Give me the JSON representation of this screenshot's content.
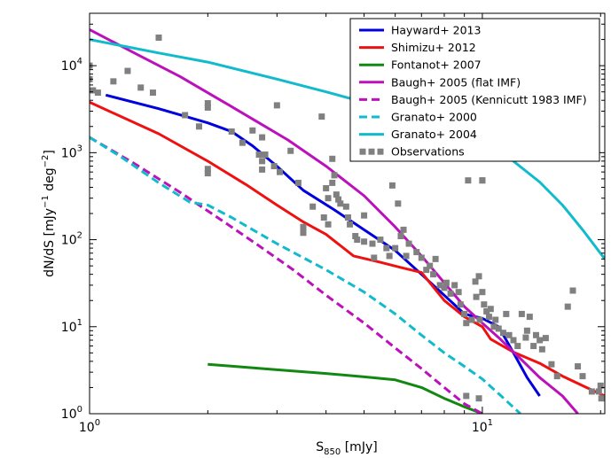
{
  "chart_data": {
    "type": "line",
    "title": "",
    "xlabel": {
      "main": "S",
      "sub": "850",
      "rest": " [mJy]"
    },
    "ylabel": {
      "a": "dN/dS [mJy",
      "sup1": "−1",
      "b": " deg",
      "sup2": "−2",
      "c": "]"
    },
    "x_scale": "log",
    "y_scale": "log",
    "xlim": [
      1.0,
      20.5
    ],
    "ylim": [
      1.0,
      40000
    ],
    "x_tick_labels": [
      {
        "value": 1,
        "base": "10",
        "exp": "0"
      },
      {
        "value": 10,
        "base": "10",
        "exp": "1"
      }
    ],
    "y_tick_labels": [
      {
        "value": 1,
        "base": "10",
        "exp": "0"
      },
      {
        "value": 10,
        "base": "10",
        "exp": "1"
      },
      {
        "value": 100,
        "base": "10",
        "exp": "2"
      },
      {
        "value": 1000,
        "base": "10",
        "exp": "3"
      },
      {
        "value": 10000,
        "base": "10",
        "exp": "4"
      }
    ],
    "grid": false,
    "legend_position": "top-right",
    "series": [
      {
        "name": "Hayward+ 2013",
        "color": "#0000dd",
        "dash": "solid",
        "points": [
          [
            1.1,
            4600
          ],
          [
            1.5,
            3200
          ],
          [
            2.0,
            2200
          ],
          [
            2.3,
            1750
          ],
          [
            2.6,
            1200
          ],
          [
            3.0,
            700
          ],
          [
            3.5,
            370
          ],
          [
            4.2,
            220
          ],
          [
            5.0,
            130
          ],
          [
            6.0,
            75
          ],
          [
            7.0,
            40
          ],
          [
            8.0,
            23
          ],
          [
            9.0,
            14
          ],
          [
            10.0,
            12.5
          ],
          [
            11.0,
            10
          ],
          [
            12.0,
            5
          ],
          [
            13.0,
            2.6
          ],
          [
            14.0,
            1.6
          ]
        ]
      },
      {
        "name": "Shimizu+ 2012",
        "color": "#ee1111",
        "dash": "solid",
        "points": [
          [
            1.0,
            3800
          ],
          [
            1.5,
            1650
          ],
          [
            2.0,
            800
          ],
          [
            2.5,
            430
          ],
          [
            3.0,
            250
          ],
          [
            3.5,
            160
          ],
          [
            4.0,
            115
          ],
          [
            4.7,
            65
          ],
          [
            5.5,
            55
          ],
          [
            6.2,
            48
          ],
          [
            7.0,
            42
          ],
          [
            8.0,
            20
          ],
          [
            9.0,
            13
          ],
          [
            10.0,
            10
          ],
          [
            10.5,
            7.2
          ],
          [
            12.0,
            5.1
          ],
          [
            14.0,
            3.8
          ],
          [
            16.0,
            2.7
          ],
          [
            18.0,
            2.1
          ],
          [
            20.5,
            1.6
          ]
        ]
      },
      {
        "name": "Fontanot+ 2007",
        "color": "#118811",
        "dash": "solid",
        "points": [
          [
            2.0,
            3.7
          ],
          [
            3.0,
            3.2
          ],
          [
            4.0,
            2.9
          ],
          [
            5.0,
            2.65
          ],
          [
            6.0,
            2.45
          ],
          [
            7.0,
            2.0
          ],
          [
            8.0,
            1.5
          ],
          [
            9.0,
            1.2
          ],
          [
            10.0,
            1.0
          ]
        ]
      },
      {
        "name": "Baugh+ 2005 (flat IMF)",
        "color": "#bb11bb",
        "dash": "solid",
        "points": [
          [
            1.0,
            26000
          ],
          [
            1.3,
            14000
          ],
          [
            1.7,
            7500
          ],
          [
            2.2,
            3800
          ],
          [
            2.7,
            2200
          ],
          [
            3.2,
            1400
          ],
          [
            4.0,
            700
          ],
          [
            5.0,
            320
          ],
          [
            6.0,
            140
          ],
          [
            7.0,
            65
          ],
          [
            8.0,
            32
          ],
          [
            9.0,
            17
          ],
          [
            10.0,
            11
          ],
          [
            11.0,
            7.5
          ],
          [
            12.5,
            4.3
          ],
          [
            14.0,
            2.6
          ],
          [
            16.0,
            1.6
          ],
          [
            17.5,
            1.0
          ]
        ]
      },
      {
        "name": "Baugh+ 2005 (Kennicutt 1983 IMF)",
        "color": "#bb11bb",
        "dash": "dashed",
        "points": [
          [
            1.0,
            1500
          ],
          [
            1.3,
            750
          ],
          [
            1.7,
            350
          ],
          [
            2.2,
            160
          ],
          [
            2.7,
            85
          ],
          [
            3.3,
            45
          ],
          [
            4.0,
            23
          ],
          [
            5.0,
            11
          ],
          [
            6.0,
            5.7
          ],
          [
            7.0,
            3.3
          ],
          [
            8.0,
            2.0
          ],
          [
            9.0,
            1.3
          ],
          [
            10.0,
            1.0
          ]
        ]
      },
      {
        "name": "Granato+ 2000",
        "color": "#11bbcc",
        "dash": "dashed",
        "points": [
          [
            1.0,
            1500
          ],
          [
            1.2,
            900
          ],
          [
            1.5,
            450
          ],
          [
            1.8,
            270
          ],
          [
            2.0,
            250
          ],
          [
            2.3,
            180
          ],
          [
            3.0,
            90
          ],
          [
            4.0,
            45
          ],
          [
            5.0,
            25
          ],
          [
            6.0,
            14
          ],
          [
            7.0,
            8
          ],
          [
            8.0,
            5
          ],
          [
            9.0,
            3.5
          ],
          [
            10.0,
            2.5
          ],
          [
            11.0,
            1.7
          ],
          [
            12.5,
            1.0
          ]
        ]
      },
      {
        "name": "Granato+ 2004",
        "color": "#11bbcc",
        "dash": "solid",
        "points": [
          [
            1.0,
            20000
          ],
          [
            1.5,
            14000
          ],
          [
            2.0,
            11000
          ],
          [
            3.0,
            7000
          ],
          [
            4.0,
            5000
          ],
          [
            5.0,
            3800
          ],
          [
            6.0,
            3100
          ],
          [
            7.0,
            2700
          ],
          [
            8.0,
            2200
          ],
          [
            10.0,
            1500
          ],
          [
            12.0,
            800
          ],
          [
            14.0,
            460
          ],
          [
            16.0,
            250
          ],
          [
            18.0,
            130
          ],
          [
            20.5,
            60
          ]
        ]
      },
      {
        "name": "Observations",
        "color": "#808080",
        "marker": "square",
        "points": [
          [
            1.0,
            10000
          ],
          [
            1.0,
            7000
          ],
          [
            1.02,
            5200
          ],
          [
            1.05,
            4900
          ],
          [
            1.15,
            6600
          ],
          [
            1.25,
            8700
          ],
          [
            1.35,
            5600
          ],
          [
            1.45,
            4900
          ],
          [
            1.5,
            21000
          ],
          [
            1.75,
            2700
          ],
          [
            1.9,
            2000
          ],
          [
            2.0,
            3300
          ],
          [
            2.0,
            3700
          ],
          [
            2.0,
            650
          ],
          [
            2.0,
            580
          ],
          [
            2.3,
            1750
          ],
          [
            2.45,
            1300
          ],
          [
            2.6,
            1800
          ],
          [
            2.7,
            950
          ],
          [
            2.75,
            1500
          ],
          [
            2.75,
            800
          ],
          [
            2.75,
            640
          ],
          [
            2.8,
            950
          ],
          [
            2.95,
            700
          ],
          [
            3.0,
            3500
          ],
          [
            3.05,
            600
          ],
          [
            3.25,
            1050
          ],
          [
            3.4,
            450
          ],
          [
            3.5,
            120
          ],
          [
            3.5,
            140
          ],
          [
            3.7,
            240
          ],
          [
            3.9,
            2600
          ],
          [
            3.95,
            180
          ],
          [
            4.0,
            390
          ],
          [
            4.05,
            150
          ],
          [
            4.05,
            300
          ],
          [
            4.15,
            850
          ],
          [
            4.15,
            450
          ],
          [
            4.2,
            550
          ],
          [
            4.25,
            330
          ],
          [
            4.3,
            290
          ],
          [
            4.35,
            260
          ],
          [
            4.5,
            240
          ],
          [
            4.55,
            180
          ],
          [
            4.6,
            150
          ],
          [
            4.75,
            110
          ],
          [
            4.8,
            100
          ],
          [
            5.0,
            95
          ],
          [
            5.0,
            190
          ],
          [
            5.25,
            90
          ],
          [
            5.3,
            62
          ],
          [
            5.5,
            100
          ],
          [
            5.7,
            80
          ],
          [
            5.8,
            65
          ],
          [
            5.9,
            420
          ],
          [
            6.0,
            80
          ],
          [
            6.1,
            260
          ],
          [
            6.2,
            110
          ],
          [
            6.3,
            130
          ],
          [
            6.4,
            65
          ],
          [
            6.5,
            90
          ],
          [
            6.8,
            72
          ],
          [
            7.0,
            62
          ],
          [
            7.2,
            45
          ],
          [
            7.35,
            50
          ],
          [
            7.5,
            40
          ],
          [
            7.6,
            60
          ],
          [
            7.8,
            30
          ],
          [
            8.0,
            28
          ],
          [
            8.1,
            32
          ],
          [
            8.3,
            24
          ],
          [
            8.5,
            30
          ],
          [
            8.7,
            25
          ],
          [
            8.8,
            18
          ],
          [
            9.0,
            14
          ],
          [
            9.1,
            11
          ],
          [
            9.4,
            12
          ],
          [
            9.6,
            33
          ],
          [
            9.65,
            22
          ],
          [
            9.8,
            38
          ],
          [
            9.85,
            12
          ],
          [
            10.0,
            480
          ],
          [
            10.0,
            25
          ],
          [
            10.1,
            18
          ],
          [
            10.25,
            15
          ],
          [
            10.4,
            13
          ],
          [
            10.5,
            16
          ],
          [
            10.7,
            10
          ],
          [
            10.8,
            12
          ],
          [
            11.0,
            9.5
          ],
          [
            11.3,
            8.5
          ],
          [
            11.5,
            14
          ],
          [
            11.7,
            8
          ],
          [
            12.0,
            7
          ],
          [
            12.3,
            6
          ],
          [
            12.6,
            14
          ],
          [
            12.9,
            7.5
          ],
          [
            13.0,
            9
          ],
          [
            13.2,
            13
          ],
          [
            13.5,
            6
          ],
          [
            13.7,
            8
          ],
          [
            14.0,
            7
          ],
          [
            14.2,
            5.5
          ],
          [
            14.5,
            7.4
          ],
          [
            15.0,
            3.7
          ],
          [
            15.5,
            2.7
          ],
          [
            16.5,
            17
          ],
          [
            17.0,
            26
          ],
          [
            17.5,
            3.5
          ],
          [
            18.0,
            2.7
          ],
          [
            19.0,
            1.8
          ],
          [
            19.8,
            1.8
          ],
          [
            20.0,
            2.1
          ],
          [
            20.1,
            1.5
          ],
          [
            9.1,
            1.6
          ],
          [
            9.8,
            1.5
          ],
          [
            10.0,
            480
          ],
          [
            9.2,
            480
          ]
        ]
      }
    ]
  }
}
